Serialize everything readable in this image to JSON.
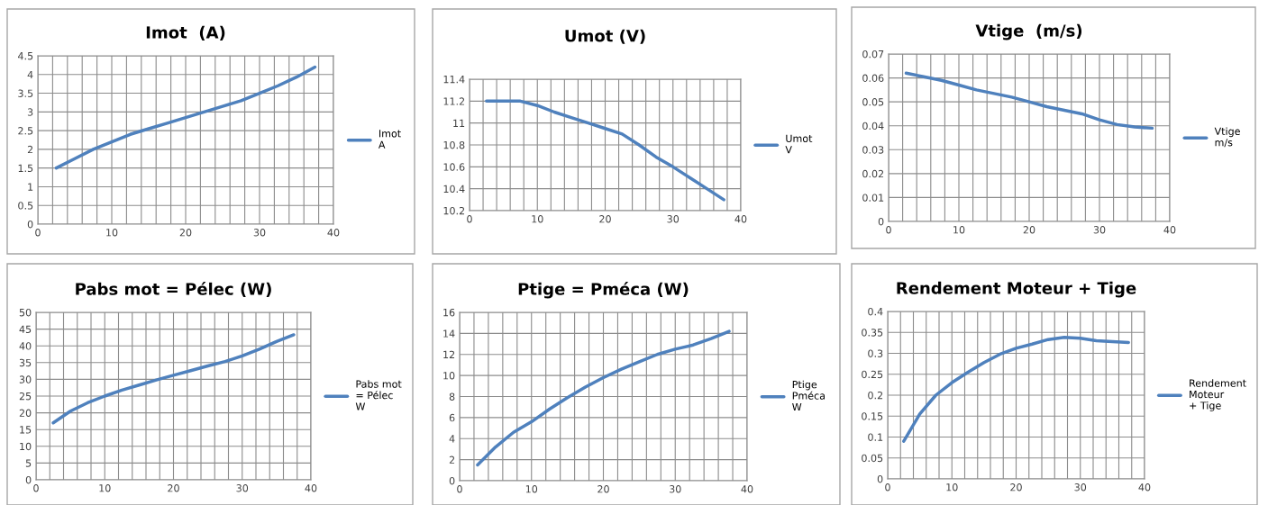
{
  "chart_data": [
    {
      "type": "line",
      "title": "Imot  (A)",
      "x": [
        2.5,
        5,
        7.5,
        10,
        12.5,
        15,
        17.5,
        20,
        22.5,
        25,
        27.5,
        30,
        32.5,
        35,
        37.5
      ],
      "series": [
        {
          "name": "Imot\nA",
          "color": "#4f81bd",
          "values": [
            1.5,
            1.75,
            2.0,
            2.2,
            2.4,
            2.55,
            2.7,
            2.85,
            3.0,
            3.15,
            3.3,
            3.5,
            3.7,
            3.93,
            4.2
          ]
        }
      ],
      "xlim": [
        0,
        40
      ],
      "xticks": [
        0,
        {
          "value": 2,
          "label": null
        },
        {
          "value": 4,
          "label": null
        },
        {
          "value": 6,
          "label": null
        },
        {
          "value": 8,
          "label": null
        },
        10,
        {
          "value": 12,
          "label": null
        },
        {
          "value": 14,
          "label": null
        },
        {
          "value": 16,
          "label": null
        },
        {
          "value": 18,
          "label": null
        },
        20,
        {
          "value": 22,
          "label": null
        },
        {
          "value": 24,
          "label": null
        },
        {
          "value": 26,
          "label": null
        },
        {
          "value": 28,
          "label": null
        },
        30,
        {
          "value": 32,
          "label": null
        },
        {
          "value": 34,
          "label": null
        },
        {
          "value": 36,
          "label": null
        },
        {
          "value": 38,
          "label": null
        },
        40
      ],
      "ylim": [
        0,
        4.5
      ],
      "yticks": [
        0,
        0.5,
        1,
        1.5,
        2,
        2.5,
        3,
        3.5,
        4,
        4.5
      ],
      "grid": true,
      "legend": "right",
      "marker": "none",
      "line_style": "solid"
    },
    {
      "type": "line",
      "title": "Umot (V)",
      "x": [
        2.5,
        5,
        7.5,
        10,
        12.5,
        15,
        17.5,
        20,
        22.5,
        25,
        27.5,
        30,
        32.5,
        35,
        37.5
      ],
      "series": [
        {
          "name": "Umot\nV",
          "color": "#4f81bd",
          "values": [
            11.2,
            11.2,
            11.2,
            11.16,
            11.1,
            11.05,
            11.0,
            10.95,
            10.9,
            10.8,
            10.69,
            10.6,
            10.5,
            10.4,
            10.3
          ]
        }
      ],
      "xlim": [
        0,
        40
      ],
      "xticks": [
        0,
        {
          "value": 2,
          "label": null
        },
        {
          "value": 4,
          "label": null
        },
        {
          "value": 6,
          "label": null
        },
        {
          "value": 8,
          "label": null
        },
        10,
        {
          "value": 12,
          "label": null
        },
        {
          "value": 14,
          "label": null
        },
        {
          "value": 16,
          "label": null
        },
        {
          "value": 18,
          "label": null
        },
        20,
        {
          "value": 22,
          "label": null
        },
        {
          "value": 24,
          "label": null
        },
        {
          "value": 26,
          "label": null
        },
        {
          "value": 28,
          "label": null
        },
        30,
        {
          "value": 32,
          "label": null
        },
        {
          "value": 34,
          "label": null
        },
        {
          "value": 36,
          "label": null
        },
        {
          "value": 38,
          "label": null
        },
        40
      ],
      "ylim": [
        10.2,
        11.4
      ],
      "yticks": [
        10.2,
        10.4,
        10.6,
        10.8,
        11,
        11.2,
        11.4
      ],
      "grid": true,
      "legend": "right",
      "marker": "none",
      "line_style": "solid"
    },
    {
      "type": "line",
      "title": "Vtige  (m/s)",
      "x": [
        2.5,
        5,
        7.5,
        10,
        12.5,
        15,
        17.5,
        20,
        22.5,
        25,
        27.5,
        30,
        32.5,
        35,
        37.5
      ],
      "series": [
        {
          "name": "Vtige\nm/s",
          "color": "#4f81bd",
          "values": [
            0.062,
            0.0605,
            0.059,
            0.057,
            0.055,
            0.0535,
            0.052,
            0.05,
            0.048,
            0.0465,
            0.045,
            0.0425,
            0.0405,
            0.0395,
            0.039
          ]
        }
      ],
      "xlim": [
        0,
        40
      ],
      "xticks": [
        0,
        {
          "value": 2,
          "label": null
        },
        {
          "value": 4,
          "label": null
        },
        {
          "value": 6,
          "label": null
        },
        {
          "value": 8,
          "label": null
        },
        10,
        {
          "value": 12,
          "label": null
        },
        {
          "value": 14,
          "label": null
        },
        {
          "value": 16,
          "label": null
        },
        {
          "value": 18,
          "label": null
        },
        20,
        {
          "value": 22,
          "label": null
        },
        {
          "value": 24,
          "label": null
        },
        {
          "value": 26,
          "label": null
        },
        {
          "value": 28,
          "label": null
        },
        30,
        {
          "value": 32,
          "label": null
        },
        {
          "value": 34,
          "label": null
        },
        {
          "value": 36,
          "label": null
        },
        {
          "value": 38,
          "label": null
        },
        40
      ],
      "ylim": [
        0,
        0.07
      ],
      "yticks": [
        0,
        0.01,
        0.02,
        0.03,
        0.04,
        0.05,
        0.06,
        0.07
      ],
      "grid": true,
      "legend": "right",
      "marker": "none",
      "line_style": "solid"
    },
    {
      "type": "line",
      "title": "Pabs mot = Pélec (W)",
      "x": [
        2.5,
        5,
        7.5,
        10,
        12.5,
        15,
        17.5,
        20,
        22.5,
        25,
        27.5,
        30,
        32.5,
        35,
        37.5
      ],
      "series": [
        {
          "name": "Pabs mot\n= Pélec\nW",
          "color": "#4f81bd",
          "values": [
            17,
            20.5,
            23,
            25,
            26.8,
            28.3,
            29.8,
            31.2,
            32.6,
            34,
            35.3,
            37,
            39,
            41.3,
            43.3
          ]
        }
      ],
      "xlim": [
        0,
        40
      ],
      "xticks": [
        0,
        {
          "value": 2,
          "label": null
        },
        {
          "value": 4,
          "label": null
        },
        {
          "value": 6,
          "label": null
        },
        {
          "value": 8,
          "label": null
        },
        10,
        {
          "value": 12,
          "label": null
        },
        {
          "value": 14,
          "label": null
        },
        {
          "value": 16,
          "label": null
        },
        {
          "value": 18,
          "label": null
        },
        20,
        {
          "value": 22,
          "label": null
        },
        {
          "value": 24,
          "label": null
        },
        {
          "value": 26,
          "label": null
        },
        {
          "value": 28,
          "label": null
        },
        30,
        {
          "value": 32,
          "label": null
        },
        {
          "value": 34,
          "label": null
        },
        {
          "value": 36,
          "label": null
        },
        {
          "value": 38,
          "label": null
        },
        40
      ],
      "ylim": [
        0,
        50
      ],
      "yticks": [
        0,
        5,
        10,
        15,
        20,
        25,
        30,
        35,
        40,
        45,
        50
      ],
      "grid": true,
      "legend": "right",
      "marker": "none",
      "line_style": "solid"
    },
    {
      "type": "line",
      "title": "Ptige = Pméca (W)",
      "x": [
        2.5,
        5,
        7.5,
        10,
        12.5,
        15,
        17.5,
        20,
        22.5,
        25,
        27.5,
        30,
        32.5,
        35,
        37.5
      ],
      "series": [
        {
          "name": "Ptige\nPméca\nW",
          "color": "#4f81bd",
          "values": [
            1.5,
            3.2,
            4.6,
            5.6,
            6.8,
            7.9,
            8.9,
            9.8,
            10.6,
            11.3,
            12.0,
            12.5,
            12.9,
            13.5,
            14.2
          ]
        }
      ],
      "xlim": [
        0,
        40
      ],
      "xticks": [
        0,
        {
          "value": 2,
          "label": null
        },
        {
          "value": 4,
          "label": null
        },
        {
          "value": 6,
          "label": null
        },
        {
          "value": 8,
          "label": null
        },
        10,
        {
          "value": 12,
          "label": null
        },
        {
          "value": 14,
          "label": null
        },
        {
          "value": 16,
          "label": null
        },
        {
          "value": 18,
          "label": null
        },
        20,
        {
          "value": 22,
          "label": null
        },
        {
          "value": 24,
          "label": null
        },
        {
          "value": 26,
          "label": null
        },
        {
          "value": 28,
          "label": null
        },
        30,
        {
          "value": 32,
          "label": null
        },
        {
          "value": 34,
          "label": null
        },
        {
          "value": 36,
          "label": null
        },
        {
          "value": 38,
          "label": null
        },
        40
      ],
      "ylim": [
        0,
        16
      ],
      "yticks": [
        0,
        2,
        4,
        6,
        8,
        10,
        12,
        14,
        16
      ],
      "grid": true,
      "legend": "right",
      "marker": "none",
      "line_style": "solid"
    },
    {
      "type": "line",
      "title": "Rendement Moteur + Tige",
      "x": [
        2.5,
        5,
        7.5,
        10,
        12.5,
        15,
        17.5,
        20,
        22.5,
        25,
        27.5,
        30,
        32.5,
        35,
        37.5
      ],
      "series": [
        {
          "name": "Rendement\nMoteur\n+ Tige",
          "color": "#4f81bd",
          "values": [
            0.09,
            0.155,
            0.2,
            0.23,
            0.255,
            0.278,
            0.298,
            0.312,
            0.322,
            0.333,
            0.338,
            0.336,
            0.33,
            0.328,
            0.326
          ]
        }
      ],
      "xlim": [
        0,
        40
      ],
      "xticks": [
        0,
        {
          "value": 2,
          "label": null
        },
        {
          "value": 4,
          "label": null
        },
        {
          "value": 6,
          "label": null
        },
        {
          "value": 8,
          "label": null
        },
        10,
        {
          "value": 12,
          "label": null
        },
        {
          "value": 14,
          "label": null
        },
        {
          "value": 16,
          "label": null
        },
        {
          "value": 18,
          "label": null
        },
        20,
        {
          "value": 22,
          "label": null
        },
        {
          "value": 24,
          "label": null
        },
        {
          "value": 26,
          "label": null
        },
        {
          "value": 28,
          "label": null
        },
        30,
        {
          "value": 32,
          "label": null
        },
        {
          "value": 34,
          "label": null
        },
        {
          "value": 36,
          "label": null
        },
        {
          "value": 38,
          "label": null
        },
        40
      ],
      "ylim": [
        0,
        0.4
      ],
      "yticks": [
        0,
        0.05,
        0.1,
        0.15,
        0.2,
        0.25,
        0.3,
        0.35,
        0.4
      ],
      "grid": true,
      "legend": "right",
      "marker": "none",
      "line_style": "solid"
    }
  ]
}
